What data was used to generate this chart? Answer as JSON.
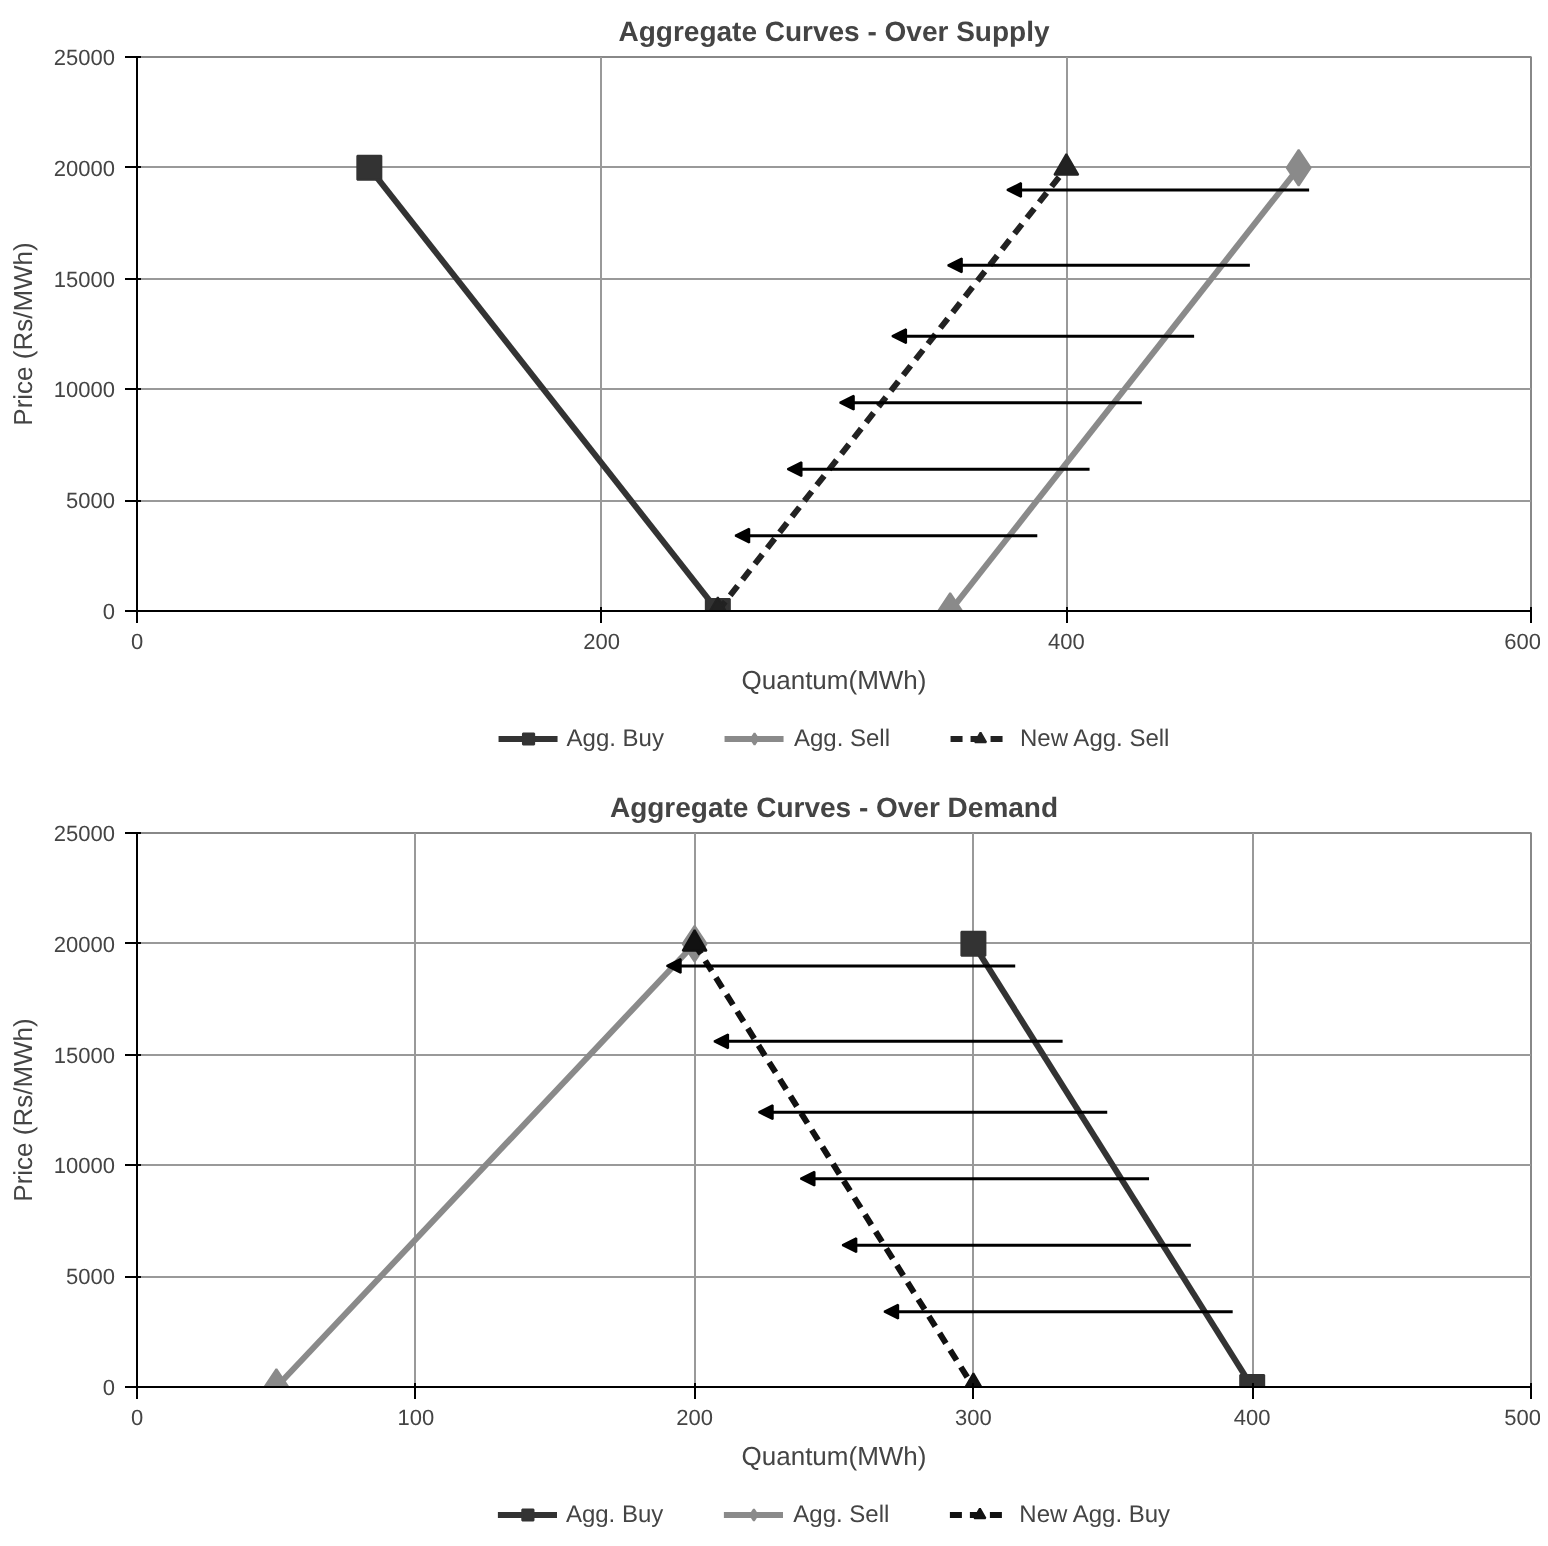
{
  "chart_data": [
    {
      "type": "line",
      "title": "Aggregate Curves - Over Supply",
      "xlabel": "Quantum(MWh)",
      "ylabel": "Price (Rs/MWh)",
      "xlim": [
        0,
        600
      ],
      "xticks": [
        0,
        200,
        400,
        600
      ],
      "ylim": [
        0,
        25000
      ],
      "yticks": [
        0,
        5000,
        10000,
        15000,
        20000,
        25000
      ],
      "grid": true,
      "legend": "bottom",
      "series": [
        {
          "name": "Agg. Buy",
          "color": "#333333",
          "marker": "square",
          "line_style": "solid",
          "x": [
            100,
            250
          ],
          "values": [
            20000,
            0
          ]
        },
        {
          "name": "Agg. Sell",
          "color": "#8a8a8a",
          "marker": "diamond",
          "line_style": "solid",
          "x": [
            350,
            500
          ],
          "values": [
            0,
            20000
          ]
        },
        {
          "name": "New Agg. Sell",
          "color": "#222222",
          "marker": "triangle",
          "line_style": "dashed",
          "x": [
            250,
            400
          ],
          "values": [
            0,
            20000
          ]
        }
      ]
    },
    {
      "type": "line",
      "title": "Aggregate Curves - Over Demand",
      "xlabel": "Quantum(MWh)",
      "ylabel": "Price (Rs/MWh)",
      "xlim": [
        0,
        500
      ],
      "xticks": [
        0,
        100,
        200,
        300,
        400,
        500
      ],
      "ylim": [
        0,
        25000
      ],
      "yticks": [
        0,
        5000,
        10000,
        15000,
        20000,
        25000
      ],
      "grid": true,
      "legend": "bottom",
      "series": [
        {
          "name": "Agg. Buy",
          "color": "#333333",
          "marker": "square",
          "line_style": "solid",
          "x": [
            300,
            400
          ],
          "values": [
            20000,
            0
          ]
        },
        {
          "name": "Agg. Sell",
          "color": "#8a8a8a",
          "marker": "diamond",
          "line_style": "solid",
          "x": [
            50,
            200
          ],
          "values": [
            0,
            20000
          ]
        },
        {
          "name": "New Agg. Buy",
          "color": "#111111",
          "marker": "triangle",
          "line_style": "dashed",
          "x": [
            200,
            300
          ],
          "values": [
            20000,
            0
          ]
        }
      ]
    }
  ]
}
